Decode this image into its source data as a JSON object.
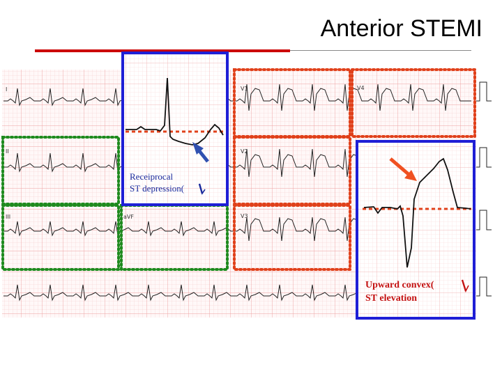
{
  "slide": {
    "title": "Anterior STEMI"
  },
  "leads": {
    "v1": "V1",
    "v2": "V2",
    "v3": "V3",
    "v4": "V4",
    "avf": "aVF",
    "i": "I",
    "ii": "II",
    "iii": "III"
  },
  "annotations": {
    "reciprocal_line1": "Receiprocal",
    "reciprocal_line2": "ST depression(",
    "elevation_line1": "Upward convex(",
    "elevation_line2": "ST elevation"
  },
  "colors": {
    "box_blue": "#1f1fd6",
    "box_red_dotted": "#e0401a",
    "box_green_dotted": "#1e8a1e",
    "arrow_blue": "#3050b0",
    "arrow_red": "#f05020",
    "grid_red": "#f3b0b0"
  },
  "icons": {
    "down_arrow": "down-arrow-icon",
    "up_arrow": "up-arrow-icon"
  }
}
